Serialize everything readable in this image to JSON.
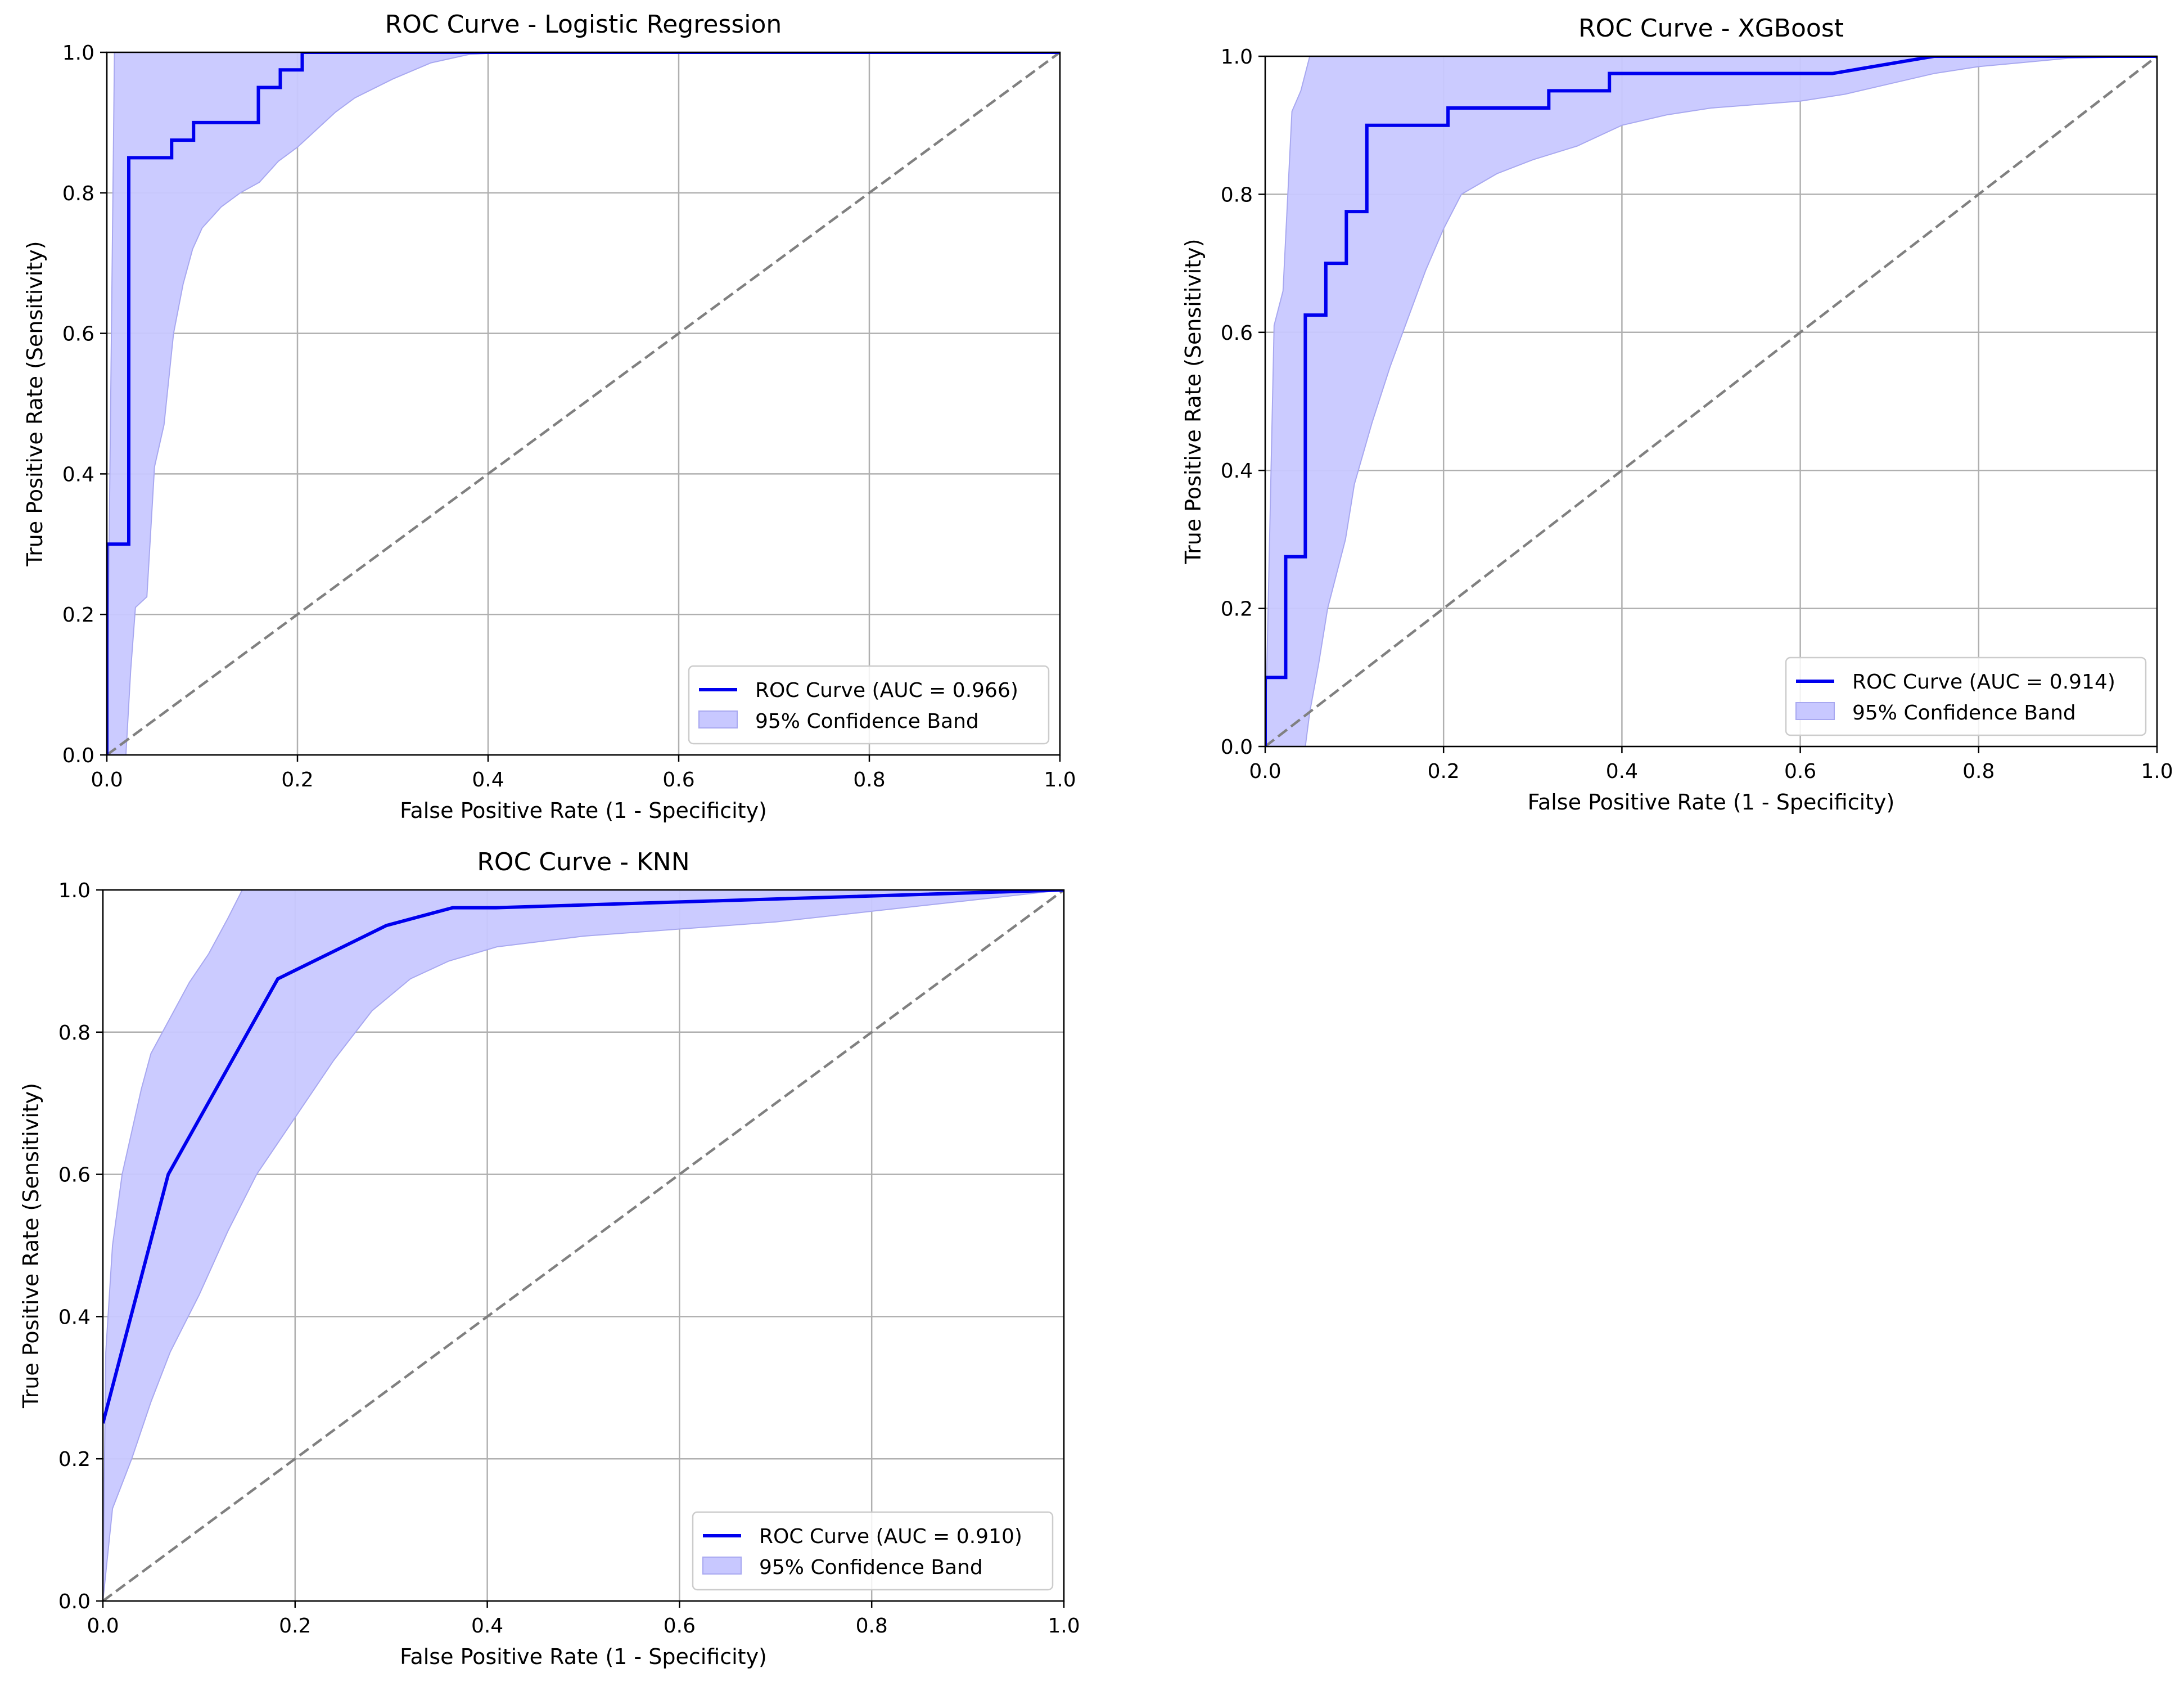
{
  "chart_data": [
    {
      "type": "line",
      "title": "ROC Curve - Logistic Regression",
      "xlabel": "False Positive Rate (1 - Specificity)",
      "ylabel": "True Positive Rate (Sensitivity)",
      "xlim": [
        0,
        1
      ],
      "ylim": [
        0,
        1
      ],
      "xticks": [
        0.0,
        0.2,
        0.4,
        0.6,
        0.8,
        1.0
      ],
      "yticks": [
        0.0,
        0.2,
        0.4,
        0.6,
        0.8,
        1.0
      ],
      "tick_labels": [
        "0.0",
        "0.2",
        "0.4",
        "0.6",
        "0.8",
        "1.0"
      ],
      "grid": true,
      "legend_position": "lower right",
      "series": [
        {
          "name": "ROC Curve (AUC = 0.966)",
          "color": "#0000ee",
          "x": [
            0.0,
            0.0,
            0.023,
            0.023,
            0.068,
            0.068,
            0.091,
            0.091,
            0.159,
            0.159,
            0.182,
            0.182,
            0.205,
            0.205,
            1.0
          ],
          "y": [
            0.0,
            0.3,
            0.3,
            0.85,
            0.85,
            0.875,
            0.875,
            0.9,
            0.9,
            0.95,
            0.95,
            0.975,
            0.975,
            1.0,
            1.0
          ]
        }
      ],
      "band": {
        "name": "95% Confidence Band",
        "color": "#c8c8ff",
        "edge": "#a8a8f0",
        "upper": [
          [
            0.0,
            0.0
          ],
          [
            0.008,
            1.0
          ],
          [
            1.0,
            1.0
          ]
        ],
        "lower": [
          [
            0.0,
            0.0
          ],
          [
            0.02,
            0.0
          ],
          [
            0.025,
            0.12
          ],
          [
            0.03,
            0.21
          ],
          [
            0.042,
            0.225
          ],
          [
            0.05,
            0.41
          ],
          [
            0.06,
            0.47
          ],
          [
            0.07,
            0.6
          ],
          [
            0.08,
            0.67
          ],
          [
            0.09,
            0.72
          ],
          [
            0.1,
            0.75
          ],
          [
            0.12,
            0.78
          ],
          [
            0.14,
            0.8
          ],
          [
            0.16,
            0.815
          ],
          [
            0.18,
            0.845
          ],
          [
            0.2,
            0.865
          ],
          [
            0.22,
            0.89
          ],
          [
            0.24,
            0.915
          ],
          [
            0.26,
            0.935
          ],
          [
            0.3,
            0.962
          ],
          [
            0.34,
            0.985
          ],
          [
            0.38,
            0.997
          ],
          [
            0.42,
            1.0
          ],
          [
            1.0,
            1.0
          ]
        ]
      },
      "reference": {
        "x": [
          0,
          1
        ],
        "y": [
          0,
          1
        ],
        "color": "#808080"
      }
    },
    {
      "type": "line",
      "title": "ROC Curve - XGBoost",
      "xlabel": "False Positive Rate (1 - Specificity)",
      "ylabel": "True Positive Rate (Sensitivity)",
      "xlim": [
        0,
        1
      ],
      "ylim": [
        0,
        1
      ],
      "xticks": [
        0.0,
        0.2,
        0.4,
        0.6,
        0.8,
        1.0
      ],
      "yticks": [
        0.0,
        0.2,
        0.4,
        0.6,
        0.8,
        1.0
      ],
      "tick_labels": [
        "0.0",
        "0.2",
        "0.4",
        "0.6",
        "0.8",
        "1.0"
      ],
      "grid": true,
      "legend_position": "lower right",
      "series": [
        {
          "name": "ROC Curve (AUC = 0.914)",
          "color": "#0000ee",
          "x": [
            0.0,
            0.0,
            0.023,
            0.023,
            0.045,
            0.045,
            0.068,
            0.068,
            0.091,
            0.091,
            0.114,
            0.114,
            0.205,
            0.205,
            0.318,
            0.318,
            0.386,
            0.386,
            0.636,
            0.75,
            1.0
          ],
          "y": [
            0.0,
            0.1,
            0.1,
            0.275,
            0.275,
            0.625,
            0.625,
            0.7,
            0.7,
            0.775,
            0.775,
            0.9,
            0.9,
            0.925,
            0.925,
            0.95,
            0.95,
            0.975,
            0.975,
            1.0,
            1.0
          ]
        }
      ],
      "band": {
        "name": "95% Confidence Band",
        "color": "#c8c8ff",
        "edge": "#a8a8f0",
        "upper": [
          [
            0.0,
            0.0
          ],
          [
            0.01,
            0.61
          ],
          [
            0.02,
            0.66
          ],
          [
            0.03,
            0.92
          ],
          [
            0.04,
            0.95
          ],
          [
            0.05,
            1.0
          ],
          [
            1.0,
            1.0
          ]
        ],
        "lower": [
          [
            0.0,
            0.0
          ],
          [
            0.045,
            0.0
          ],
          [
            0.05,
            0.05
          ],
          [
            0.06,
            0.12
          ],
          [
            0.07,
            0.2
          ],
          [
            0.09,
            0.3
          ],
          [
            0.1,
            0.38
          ],
          [
            0.12,
            0.47
          ],
          [
            0.14,
            0.55
          ],
          [
            0.16,
            0.62
          ],
          [
            0.18,
            0.69
          ],
          [
            0.2,
            0.75
          ],
          [
            0.22,
            0.8
          ],
          [
            0.26,
            0.83
          ],
          [
            0.3,
            0.85
          ],
          [
            0.35,
            0.87
          ],
          [
            0.4,
            0.9
          ],
          [
            0.45,
            0.915
          ],
          [
            0.5,
            0.925
          ],
          [
            0.6,
            0.935
          ],
          [
            0.65,
            0.945
          ],
          [
            0.7,
            0.96
          ],
          [
            0.75,
            0.975
          ],
          [
            0.8,
            0.985
          ],
          [
            0.9,
            0.997
          ],
          [
            1.0,
            1.0
          ]
        ]
      },
      "reference": {
        "x": [
          0,
          1
        ],
        "y": [
          0,
          1
        ],
        "color": "#808080"
      }
    },
    {
      "type": "line",
      "title": "ROC Curve - KNN",
      "xlabel": "False Positive Rate (1 - Specificity)",
      "ylabel": "True Positive Rate (Sensitivity)",
      "xlim": [
        0,
        1
      ],
      "ylim": [
        0,
        1
      ],
      "xticks": [
        0.0,
        0.2,
        0.4,
        0.6,
        0.8,
        1.0
      ],
      "yticks": [
        0.0,
        0.2,
        0.4,
        0.6,
        0.8,
        1.0
      ],
      "tick_labels": [
        "0.0",
        "0.2",
        "0.4",
        "0.6",
        "0.8",
        "1.0"
      ],
      "grid": true,
      "legend_position": "lower right",
      "series": [
        {
          "name": "ROC Curve (AUC = 0.910)",
          "color": "#0000ee",
          "x": [
            0.0,
            0.068,
            0.182,
            0.295,
            0.364,
            0.409,
            1.0
          ],
          "y": [
            0.25,
            0.6,
            0.875,
            0.95,
            0.975,
            0.975,
            1.0
          ]
        }
      ],
      "band": {
        "name": "95% Confidence Band",
        "color": "#c8c8ff",
        "edge": "#a8a8f0",
        "upper": [
          [
            0.0,
            0.0
          ],
          [
            0.003,
            0.35
          ],
          [
            0.01,
            0.5
          ],
          [
            0.02,
            0.6
          ],
          [
            0.03,
            0.66
          ],
          [
            0.04,
            0.72
          ],
          [
            0.05,
            0.77
          ],
          [
            0.07,
            0.82
          ],
          [
            0.09,
            0.87
          ],
          [
            0.11,
            0.91
          ],
          [
            0.13,
            0.96
          ],
          [
            0.145,
            1.0
          ],
          [
            1.0,
            1.0
          ]
        ],
        "lower": [
          [
            0.0,
            0.0
          ],
          [
            0.01,
            0.13
          ],
          [
            0.03,
            0.2
          ],
          [
            0.05,
            0.28
          ],
          [
            0.07,
            0.35
          ],
          [
            0.1,
            0.43
          ],
          [
            0.13,
            0.52
          ],
          [
            0.16,
            0.6
          ],
          [
            0.2,
            0.68
          ],
          [
            0.24,
            0.76
          ],
          [
            0.28,
            0.83
          ],
          [
            0.32,
            0.875
          ],
          [
            0.36,
            0.9
          ],
          [
            0.41,
            0.92
          ],
          [
            0.5,
            0.935
          ],
          [
            0.6,
            0.945
          ],
          [
            0.7,
            0.955
          ],
          [
            0.8,
            0.97
          ],
          [
            0.9,
            0.985
          ],
          [
            1.0,
            1.0
          ]
        ]
      },
      "reference": {
        "x": [
          0,
          1
        ],
        "y": [
          0,
          1
        ],
        "color": "#808080"
      }
    }
  ]
}
